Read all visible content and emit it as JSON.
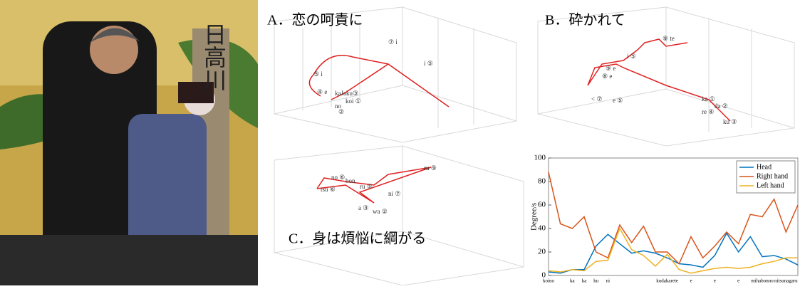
{
  "photo": {
    "sign_text": "日高川"
  },
  "panels": [
    {
      "title": "A．恋の呵責に",
      "labels": [
        "⑦ i",
        "i ⑤",
        "⑤ i",
        "④ e",
        "kaJaku③",
        "no",
        "koi ①",
        "②"
      ]
    },
    {
      "title": "B．砕かれて",
      "labels": [
        "⑧ te",
        "i ⑤",
        "⑨ e",
        "⑧ e",
        "e ⑤",
        "< ⑦",
        "ka ①",
        "da ②",
        "re ④",
        "ku ③"
      ]
    },
    {
      "title": "C．身は煩悩に綱がる",
      "labels": [
        "ru ⑨",
        "bon",
        "ru ⑤",
        "no ⑥",
        "ni ⑦",
        "tsu ⑥",
        "a ③",
        "wa ②"
      ]
    }
  ],
  "chart_data": {
    "type": "line",
    "ylabel": "Degree/s",
    "categories": [
      "koino",
      null,
      "ka",
      "ka",
      "ku",
      "ni",
      null,
      null,
      null,
      null,
      "kudakarete",
      null,
      "e",
      null,
      "e",
      null,
      "e",
      null,
      "mihabonno",
      null,
      "nitsunagaru",
      null
    ],
    "series": [
      {
        "name": "Head",
        "color": "#0072bd",
        "values": [
          3,
          2,
          5,
          5,
          25,
          35,
          27,
          19,
          21,
          19,
          15,
          10,
          9,
          7,
          17,
          36,
          20,
          33,
          16,
          17,
          14,
          9
        ]
      },
      {
        "name": "Right hand",
        "color": "#d95319",
        "values": [
          88,
          44,
          40,
          50,
          20,
          15,
          43,
          28,
          42,
          20,
          20,
          10,
          33,
          15,
          25,
          37,
          27,
          52,
          50,
          65,
          37,
          60
        ]
      },
      {
        "name": "Left hand",
        "color": "#edb120",
        "values": [
          4,
          3,
          5,
          4,
          12,
          13,
          40,
          22,
          17,
          8,
          18,
          5,
          2,
          4,
          6,
          7,
          6,
          7,
          10,
          12,
          15,
          15
        ]
      }
    ],
    "ylim": [
      0,
      100
    ],
    "yticks": [
      0,
      20,
      40,
      60,
      80,
      100
    ],
    "legend": "top-right"
  }
}
